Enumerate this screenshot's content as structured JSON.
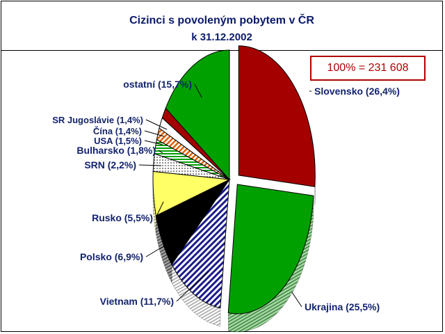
{
  "title": "Cizinci s povoleným pobytem v ČR",
  "subtitle": "k 31.12.2002",
  "total_label": "100% = 231 608",
  "chart_data": {
    "type": "pie",
    "title": "Cizinci s povoleným pobytem v ČR",
    "subtitle": "k 31.12.2002",
    "total": 231608,
    "unit": "%",
    "three_d": true,
    "exploded": [
      "Slovensko",
      "Ukrajina"
    ],
    "slices": [
      {
        "name": "Slovensko",
        "value": 26.4,
        "label": "Slovensko (26,4%)",
        "color": "#a40000",
        "pattern": "solid"
      },
      {
        "name": "Ukrajina",
        "value": 25.5,
        "label": "Ukrajina (25,5%)",
        "color": "#00a000",
        "pattern": "solid"
      },
      {
        "name": "Vietnam",
        "value": 11.7,
        "label": "Vietnam (11,7%)",
        "color": "#1a1a8a",
        "pattern": "diagonal-stripes"
      },
      {
        "name": "Polsko",
        "value": 6.9,
        "label": "Polsko (6,9%)",
        "color": "#000000",
        "pattern": "solid"
      },
      {
        "name": "Rusko",
        "value": 5.5,
        "label": "Rusko (5,5%)",
        "color": "#ffff66",
        "pattern": "solid"
      },
      {
        "name": "SRN",
        "value": 2.2,
        "label": "SRN (2,2%)",
        "color": "#ffffff",
        "pattern": "dots"
      },
      {
        "name": "Bulharsko",
        "value": 1.8,
        "label": "Bulharsko (1,8%)",
        "color": "#00a000",
        "pattern": "horizontal-stripes"
      },
      {
        "name": "USA",
        "value": 1.5,
        "label": "USA (1,5%)",
        "color": "#e06000",
        "pattern": "diagonal-stripes"
      },
      {
        "name": "Čína",
        "value": 1.4,
        "label": "Čína (1,4%)",
        "color": "#ffffff",
        "pattern": "solid"
      },
      {
        "name": "SR Jugoslávie",
        "value": 1.4,
        "label": "SR Jugoslávie (1,4%)",
        "color": "#a40000",
        "pattern": "solid"
      },
      {
        "name": "ostatní",
        "value": 15.7,
        "label": "ostatní (15,7%)",
        "color": "#00a000",
        "pattern": "solid"
      }
    ]
  }
}
